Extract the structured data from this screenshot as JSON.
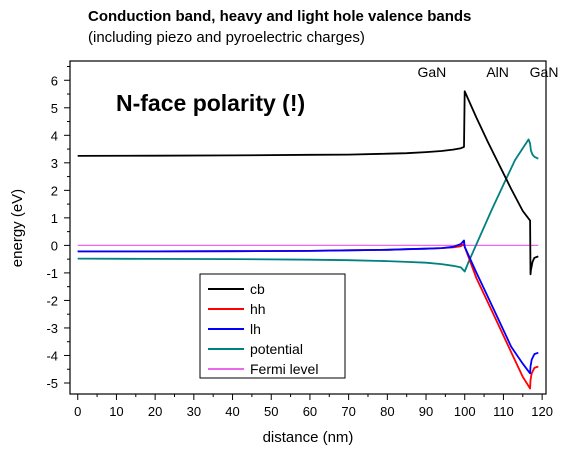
{
  "chart_data": {
    "type": "line",
    "title": "Conduction band, heavy and light hole valence bands",
    "subtitle": "(including piezo and pyroelectric charges)",
    "xlabel": "distance (nm)",
    "ylabel": "energy (eV)",
    "xlim": [
      -2,
      121
    ],
    "ylim": [
      -5.4,
      6.7
    ],
    "xticks": [
      0,
      10,
      20,
      30,
      40,
      50,
      60,
      70,
      80,
      90,
      100,
      110,
      120
    ],
    "yticks": [
      -5,
      -4,
      -3,
      -2,
      -1,
      0,
      1,
      2,
      3,
      4,
      5,
      6
    ],
    "grid": false,
    "legend_position": "bottom-left",
    "region_labels": [
      {
        "text": "GaN",
        "x": 91.5
      },
      {
        "text": "AlN",
        "x": 108.5
      },
      {
        "text": "GaN",
        "x": 120.5
      }
    ],
    "annotation": "N-face polarity (!)",
    "series": [
      {
        "name": "cb",
        "color": "#000000",
        "x": [
          0,
          20,
          40,
          60,
          70,
          80,
          85,
          90,
          94,
          97,
          99,
          99.8,
          100,
          100.3,
          103,
          106,
          109,
          112,
          115,
          116.9,
          117,
          117.1,
          117.5,
          118,
          119
        ],
        "y": [
          3.25,
          3.26,
          3.27,
          3.29,
          3.3,
          3.33,
          3.35,
          3.39,
          3.43,
          3.48,
          3.53,
          3.58,
          5.6,
          5.5,
          4.65,
          3.75,
          2.9,
          2.05,
          1.25,
          0.9,
          -1.05,
          -0.9,
          -0.6,
          -0.45,
          -0.4
        ]
      },
      {
        "name": "hh",
        "color": "#ff0000",
        "x": [
          0,
          20,
          40,
          60,
          70,
          80,
          85,
          90,
          94,
          97,
          99,
          99.8,
          100,
          103,
          106,
          109,
          112,
          115,
          116.9,
          117,
          117.3,
          118,
          119
        ],
        "y": [
          -0.22,
          -0.22,
          -0.21,
          -0.2,
          -0.18,
          -0.16,
          -0.14,
          -0.12,
          -0.1,
          -0.07,
          -0.03,
          0.05,
          -0.05,
          -1.18,
          -2.08,
          -2.98,
          -3.88,
          -4.78,
          -5.2,
          -4.9,
          -4.65,
          -4.45,
          -4.4
        ]
      },
      {
        "name": "lh",
        "color": "#0000ff",
        "x": [
          0,
          20,
          40,
          60,
          70,
          80,
          85,
          90,
          94,
          97,
          99,
          99.8,
          100,
          103,
          106,
          109,
          112,
          115,
          116.9,
          117,
          117.3,
          118,
          119
        ],
        "y": [
          -0.22,
          -0.22,
          -0.21,
          -0.2,
          -0.18,
          -0.16,
          -0.14,
          -0.12,
          -0.1,
          -0.05,
          0.05,
          0.18,
          -0.05,
          -0.98,
          -1.88,
          -2.78,
          -3.68,
          -4.3,
          -4.65,
          -4.4,
          -4.15,
          -3.95,
          -3.9
        ]
      },
      {
        "name": "potential",
        "color": "#008080",
        "x": [
          0,
          20,
          40,
          60,
          70,
          80,
          85,
          90,
          94,
          97,
          99,
          100,
          101,
          104,
          107,
          110,
          113,
          116.5,
          116.9,
          117.1,
          117.5,
          118,
          119
        ],
        "y": [
          -0.48,
          -0.49,
          -0.5,
          -0.52,
          -0.54,
          -0.57,
          -0.6,
          -0.63,
          -0.68,
          -0.74,
          -0.8,
          -0.95,
          -0.6,
          0.35,
          1.3,
          2.2,
          3.1,
          3.85,
          3.7,
          3.45,
          3.3,
          3.22,
          3.15
        ]
      },
      {
        "name": "Fermi level",
        "color": "#ee66ee",
        "x": [
          0,
          119
        ],
        "y": [
          0,
          0
        ]
      }
    ]
  }
}
